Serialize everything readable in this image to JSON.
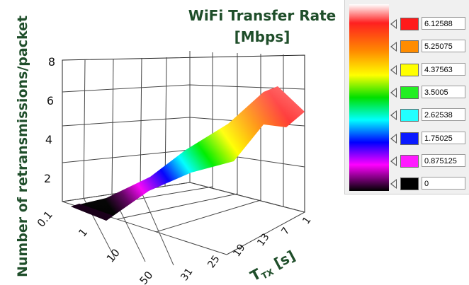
{
  "chart_data": {
    "type": "surface3d",
    "title_line1": "WiFi Transfer Rate",
    "title_line2": "[Mbps]",
    "zlabel": "Number of retransmissions/packet",
    "xlabel": "T",
    "xlabel_sub": "TX",
    "xlabel_unit": "[s]",
    "z_ticks": [
      "2",
      "4",
      "6",
      "8"
    ],
    "y_ticks": [
      "0.1",
      "1",
      "10",
      "50"
    ],
    "x_ticks": [
      "1",
      "7",
      "13",
      "19",
      "25",
      "31"
    ],
    "colorbar": [
      {
        "value": "6.12588",
        "color": "#ff1a1a"
      },
      {
        "value": "5.25075",
        "color": "#ff8c00"
      },
      {
        "value": "4.37563",
        "color": "#ffff00"
      },
      {
        "value": "3.5005",
        "color": "#22ee22"
      },
      {
        "value": "2.62538",
        "color": "#22ffff"
      },
      {
        "value": "1.75025",
        "color": "#0a1aff"
      },
      {
        "value": "0.875125",
        "color": "#ff1aff"
      },
      {
        "value": "0",
        "color": "#000000"
      }
    ]
  }
}
